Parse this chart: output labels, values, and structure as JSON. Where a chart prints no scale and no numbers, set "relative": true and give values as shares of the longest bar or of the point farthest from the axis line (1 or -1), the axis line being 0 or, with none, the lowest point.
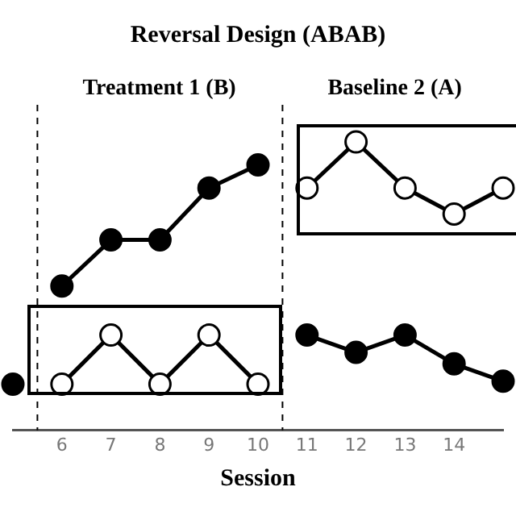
{
  "chart_data": {
    "type": "line",
    "title": "Reversal Design (ABAB)",
    "xlabel": "Session",
    "relative": true,
    "xlim": [
      5,
      15
    ],
    "xticks": [
      6,
      7,
      8,
      9,
      10,
      11,
      12,
      13,
      14
    ],
    "series": [
      {
        "color": "#000000",
        "x": [
          5
        ],
        "values": [
          0.16
        ]
      },
      {
        "color": "#000000",
        "x": [
          6,
          7,
          8,
          9,
          10
        ],
        "values": [
          0.5,
          0.66,
          0.66,
          0.84,
          0.92
        ]
      },
      {
        "color": "#000000",
        "x": [
          11,
          12,
          13,
          14,
          15
        ],
        "values": [
          0.33,
          0.27,
          0.33,
          0.23,
          0.17
        ]
      },
      {
        "color": "#ffffff",
        "x": [
          6,
          7,
          8,
          9,
          10
        ],
        "values": [
          0.16,
          0.33,
          0.16,
          0.33,
          0.16
        ]
      },
      {
        "color": "#ffffff",
        "x": [
          11,
          12,
          13,
          14,
          15
        ],
        "values": [
          0.84,
          1,
          0.84,
          0.75,
          0.84
        ]
      }
    ],
    "ref_lines": [
      {
        "axis": "x",
        "value": 5.5,
        "label": "Treatment 1 (B)",
        "line_style": "dashed"
      },
      {
        "axis": "x",
        "value": 10.5,
        "label": "Baseline 2 (A)",
        "line_style": "dashed"
      }
    ],
    "marker": "circle",
    "line_style": "solid",
    "grid": false,
    "legend": false
  }
}
